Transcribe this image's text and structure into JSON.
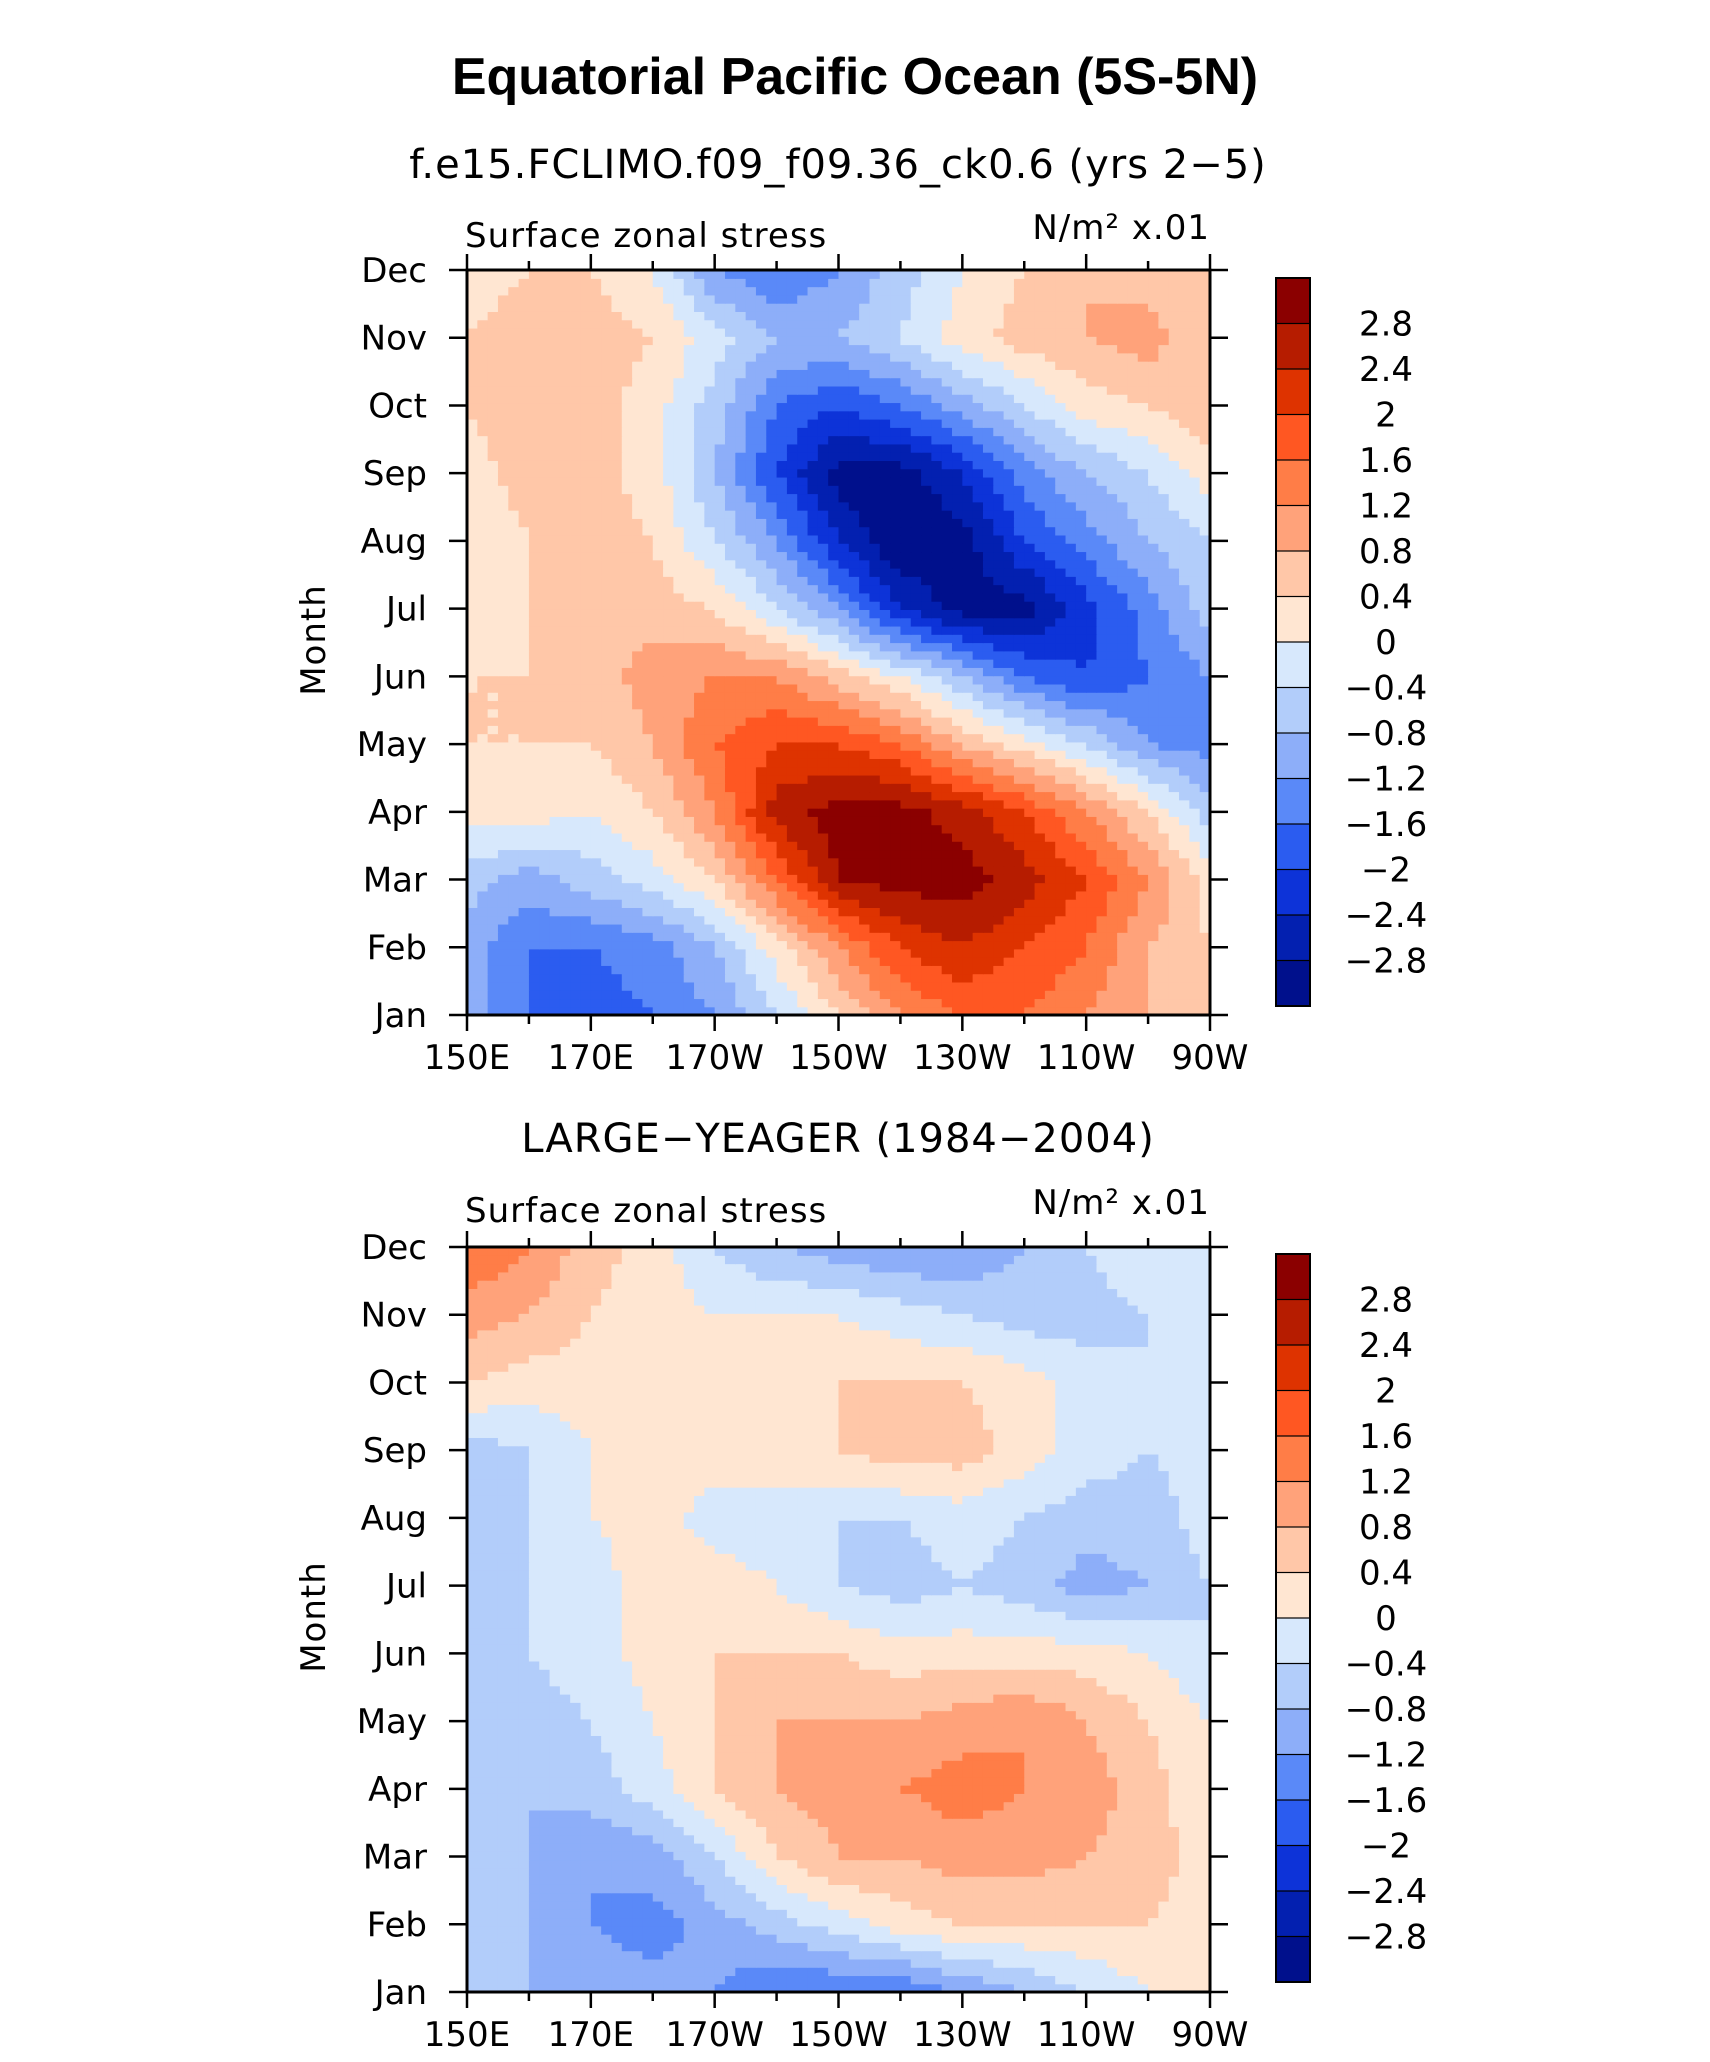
{
  "title": "Equatorial Pacific Ocean (5S-5N)",
  "colorbar": {
    "levels": [
      "2.8",
      "2.4",
      "2",
      "1.6",
      "1.2",
      "0.8",
      "0.4",
      "0",
      "−0.4",
      "−0.8",
      "−1.2",
      "−1.6",
      "−2",
      "−2.4",
      "−2.8"
    ],
    "colors": [
      "#8b0000",
      "#b61c00",
      "#de3300",
      "#ff5722",
      "#ff7d47",
      "#ffa27a",
      "#ffc7a8",
      "#ffe6d2",
      "#d7e8fc",
      "#b2cdfa",
      "#8daef9",
      "#5a89f8",
      "#2b5cf0",
      "#0d33d8",
      "#0320b0",
      "#00108c"
    ]
  },
  "x_ticks": [
    "150E",
    "170E",
    "170W",
    "150W",
    "130W",
    "110W",
    "90W"
  ],
  "y_ticks": [
    "Jan",
    "Feb",
    "Mar",
    "Apr",
    "May",
    "Jun",
    "Jul",
    "Aug",
    "Sep",
    "Oct",
    "Nov",
    "Dec"
  ],
  "y_label": "Month",
  "panels": [
    {
      "subtitle": "f.e15.FCLIMO.f09_f09.36_ck0.6 (yrs 2−5)",
      "left_label": "Surface zonal stress",
      "units_label": "N/m² x.01"
    },
    {
      "subtitle": "LARGE−YEAGER (1984−2004)",
      "left_label": "Surface zonal stress",
      "units_label": "N/m² x.01"
    }
  ],
  "chart_data": [
    {
      "type": "heatmap",
      "title": "f.e15.FCLIMO.f09_f09.36_ck0.6 (yrs 2−5)",
      "variable": "Surface zonal stress",
      "units": "N/m² x.01",
      "xlabel": "",
      "ylabel": "Month",
      "x": [
        "150E",
        "160E",
        "170E",
        "180",
        "170W",
        "160W",
        "150W",
        "140W",
        "130W",
        "120W",
        "110W",
        "100W",
        "90W"
      ],
      "y": [
        "Jan",
        "Feb",
        "Mar",
        "Apr",
        "May",
        "Jun",
        "Jul",
        "Aug",
        "Sep",
        "Oct",
        "Nov",
        "Dec"
      ],
      "z": [
        [
          -1.0,
          -1.6,
          -1.8,
          -1.6,
          -1.2,
          -0.4,
          0.4,
          1.2,
          1.6,
          1.6,
          1.2,
          0.8,
          0.4
        ],
        [
          -1.0,
          -1.6,
          -1.6,
          -1.4,
          -0.8,
          0.2,
          1.2,
          2.0,
          2.4,
          2.0,
          1.6,
          0.8,
          0.4
        ],
        [
          -0.6,
          -1.0,
          -0.6,
          -0.2,
          0.4,
          1.6,
          2.8,
          3.0,
          3.0,
          2.6,
          2.0,
          1.2,
          0.2
        ],
        [
          0.2,
          0.2,
          0.0,
          0.4,
          1.2,
          2.6,
          3.0,
          3.0,
          2.6,
          2.0,
          1.2,
          0.4,
          -0.6
        ],
        [
          0.4,
          0.4,
          0.4,
          0.8,
          1.6,
          2.0,
          2.0,
          1.6,
          0.8,
          0.2,
          -0.4,
          -1.2,
          -1.4
        ],
        [
          0.4,
          0.4,
          0.6,
          1.0,
          1.2,
          1.2,
          0.6,
          0.0,
          -0.8,
          -1.6,
          -2.0,
          -1.6,
          -1.2
        ],
        [
          0.2,
          0.4,
          0.6,
          0.6,
          0.4,
          -0.4,
          -1.2,
          -2.4,
          -3.0,
          -3.0,
          -2.2,
          -1.4,
          -0.6
        ],
        [
          0.0,
          0.4,
          0.6,
          0.4,
          -0.4,
          -1.2,
          -2.4,
          -3.2,
          -3.0,
          -2.0,
          -1.4,
          -0.8,
          -0.4
        ],
        [
          0.2,
          0.6,
          0.6,
          0.2,
          -0.8,
          -2.0,
          -3.0,
          -3.0,
          -2.4,
          -1.4,
          -0.8,
          -0.4,
          0.2
        ],
        [
          0.4,
          0.8,
          0.6,
          0.2,
          -0.6,
          -1.6,
          -2.0,
          -1.6,
          -1.0,
          -0.4,
          0.2,
          0.4,
          0.8
        ],
        [
          0.4,
          0.6,
          0.6,
          0.4,
          -0.2,
          -0.8,
          -0.8,
          -0.4,
          0.2,
          0.6,
          0.8,
          1.0,
          0.4
        ],
        [
          0.2,
          0.4,
          0.4,
          0.0,
          -1.2,
          -1.6,
          -1.2,
          -0.6,
          0.0,
          0.4,
          0.8,
          0.6,
          0.4
        ]
      ],
      "levels": [
        -2.8,
        -2.4,
        -2.0,
        -1.6,
        -1.2,
        -0.8,
        -0.4,
        0,
        0.4,
        0.8,
        1.2,
        1.6,
        2.0,
        2.4,
        2.8
      ]
    },
    {
      "type": "heatmap",
      "title": "LARGE−YEAGER (1984−2004)",
      "variable": "Surface zonal stress",
      "units": "N/m² x.01",
      "xlabel": "",
      "ylabel": "Month",
      "x": [
        "150E",
        "160E",
        "170E",
        "180",
        "170W",
        "160W",
        "150W",
        "140W",
        "130W",
        "120W",
        "110W",
        "100W",
        "90W"
      ],
      "y": [
        "Jan",
        "Feb",
        "Mar",
        "Apr",
        "May",
        "Jun",
        "Jul",
        "Aug",
        "Sep",
        "Oct",
        "Nov",
        "Dec"
      ],
      "z": [
        [
          -0.4,
          -0.8,
          -1.0,
          -1.0,
          -1.2,
          -1.6,
          -1.6,
          -1.6,
          -1.2,
          -0.8,
          -0.4,
          0.0,
          0.2
        ],
        [
          -0.4,
          -0.8,
          -1.2,
          -1.4,
          -1.0,
          -0.6,
          -0.2,
          0.2,
          0.4,
          0.4,
          0.4,
          0.4,
          0.2
        ],
        [
          -0.4,
          -0.8,
          -1.2,
          -1.0,
          -0.4,
          0.4,
          0.8,
          0.8,
          1.0,
          1.0,
          0.8,
          0.6,
          0.2
        ],
        [
          -0.4,
          -0.8,
          -0.6,
          -0.2,
          0.4,
          0.8,
          1.0,
          1.2,
          1.4,
          1.2,
          1.0,
          0.6,
          0.0
        ],
        [
          -0.4,
          -0.6,
          -0.4,
          0.0,
          0.4,
          0.8,
          0.8,
          0.8,
          1.0,
          1.2,
          0.8,
          0.4,
          0.0
        ],
        [
          -0.4,
          -0.4,
          -0.2,
          0.2,
          0.4,
          0.4,
          0.4,
          0.2,
          0.2,
          0.2,
          0.2,
          0.0,
          -0.4
        ],
        [
          -0.6,
          -0.4,
          -0.2,
          0.2,
          0.2,
          0.0,
          -0.4,
          -0.6,
          -0.4,
          -0.6,
          -1.0,
          -0.8,
          -0.4
        ],
        [
          -0.8,
          -0.4,
          0.0,
          0.2,
          -0.2,
          -0.2,
          -0.4,
          -0.4,
          -0.2,
          -0.4,
          -0.6,
          -0.6,
          -0.2
        ],
        [
          -0.6,
          -0.4,
          0.0,
          0.2,
          0.2,
          0.2,
          0.4,
          0.6,
          0.6,
          0.2,
          -0.2,
          -0.4,
          -0.2
        ],
        [
          0.4,
          0.2,
          0.2,
          0.2,
          0.2,
          0.4,
          0.4,
          0.4,
          0.4,
          0.2,
          -0.2,
          -0.4,
          0.0
        ],
        [
          1.0,
          0.8,
          0.4,
          0.2,
          0.0,
          0.0,
          0.0,
          -0.2,
          -0.4,
          -0.6,
          -0.6,
          -0.4,
          -0.2
        ],
        [
          1.6,
          1.2,
          0.6,
          0.2,
          -0.4,
          -0.8,
          -1.0,
          -1.2,
          -1.2,
          -0.8,
          -0.4,
          0.0,
          0.0
        ]
      ],
      "levels": [
        -2.8,
        -2.4,
        -2.0,
        -1.6,
        -1.2,
        -0.8,
        -0.4,
        0,
        0.4,
        0.8,
        1.2,
        1.6,
        2.0,
        2.4,
        2.8
      ]
    }
  ]
}
